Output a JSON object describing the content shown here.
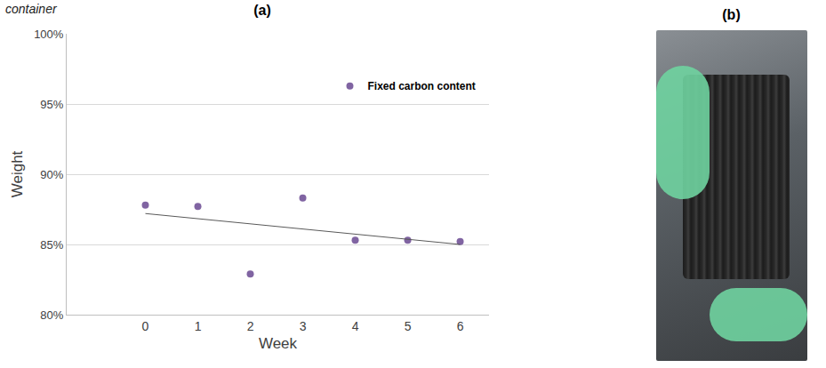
{
  "caption": "container",
  "chart_data": {
    "type": "scatter",
    "title": "(a)",
    "x_label": "Week",
    "y_label": "Weight",
    "x": [
      0,
      1,
      2,
      3,
      4,
      5,
      6
    ],
    "series": [
      {
        "name": "Fixed carbon content",
        "color": "#8064a2",
        "marker": "circle",
        "values": [
          87.8,
          87.7,
          82.9,
          88.3,
          85.3,
          85.3,
          85.2
        ]
      }
    ],
    "trendline": {
      "x": [
        0,
        6
      ],
      "values": [
        87.2,
        85.0
      ],
      "color": "#595959",
      "line_style": "solid"
    },
    "xlim": [
      -1.5,
      6.55
    ],
    "xticks": [
      0,
      1,
      2,
      3,
      4,
      5,
      6
    ],
    "ylim": [
      80,
      100
    ],
    "yticks": [
      {
        "value": 80,
        "label": "80%"
      },
      {
        "value": 85,
        "label": "85%"
      },
      {
        "value": 90,
        "label": "90%"
      },
      {
        "value": 95,
        "label": "95%"
      },
      {
        "value": 100,
        "label": "100%"
      }
    ],
    "grid": true,
    "legend": "upper right"
  },
  "photo_panel": {
    "label": "(b)"
  }
}
